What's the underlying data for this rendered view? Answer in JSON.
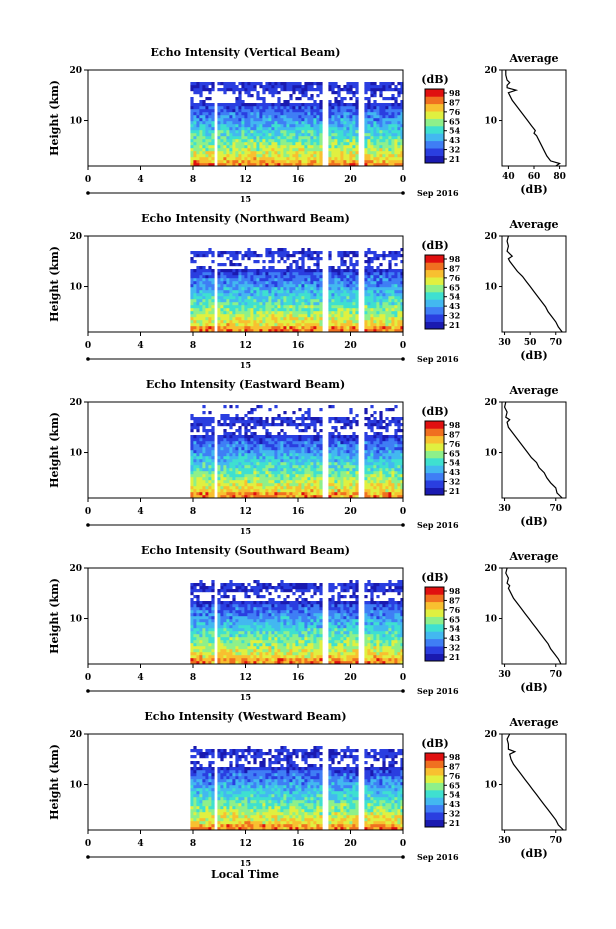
{
  "chart_data": [
    {
      "type": "heatmap",
      "title": "Echo Intensity (Vertical Beam)",
      "ylabel": "Height (km)",
      "xlim": [
        0,
        24
      ],
      "ylim": [
        1,
        20
      ],
      "x_ticks": [
        "0",
        "4",
        "8",
        "12",
        "16",
        "20",
        "0"
      ],
      "y_ticks": [
        "10",
        "20"
      ],
      "date_day": "15",
      "date_label": "Sep 2016",
      "colorbar": {
        "unit": "(dB)",
        "ticks": [
          "98",
          "87",
          "76",
          "65",
          "54",
          "43",
          "32",
          "21"
        ]
      },
      "data_start_hour": 7.8,
      "gaps": [
        9.6,
        18,
        20.7
      ],
      "top_height": 17.5,
      "upper_band": [
        16,
        17.5
      ],
      "avg": {
        "title": "Average",
        "xlabel": "(dB)",
        "xlim": [
          35,
          85
        ],
        "x_ticks": [
          "40",
          "60",
          "80"
        ],
        "y_ticks": [
          "10",
          "20"
        ],
        "profile": [
          [
            77,
            1
          ],
          [
            80,
            1.5
          ],
          [
            73,
            2
          ],
          [
            70,
            3
          ],
          [
            68,
            4
          ],
          [
            66,
            5
          ],
          [
            64,
            6
          ],
          [
            62,
            7
          ],
          [
            60,
            7.5
          ],
          [
            61,
            8
          ],
          [
            58,
            9
          ],
          [
            55,
            10
          ],
          [
            52,
            11
          ],
          [
            49,
            12
          ],
          [
            46,
            13
          ],
          [
            43,
            14
          ],
          [
            41,
            15
          ],
          [
            40,
            15.5
          ],
          [
            46,
            16
          ],
          [
            39,
            16.5
          ],
          [
            39,
            17
          ],
          [
            41,
            17.5
          ],
          [
            39,
            18
          ],
          [
            38,
            19
          ],
          [
            38,
            20
          ]
        ]
      }
    },
    {
      "type": "heatmap",
      "title": "Echo Intensity (Northward Beam)",
      "ylabel": "Height (km)",
      "xlim": [
        0,
        24
      ],
      "ylim": [
        1,
        20
      ],
      "x_ticks": [
        "0",
        "4",
        "8",
        "12",
        "16",
        "20",
        "0"
      ],
      "y_ticks": [
        "10",
        "20"
      ],
      "date_day": "15",
      "date_label": "Sep 2016",
      "colorbar": {
        "unit": "(dB)",
        "ticks": [
          "98",
          "87",
          "76",
          "65",
          "54",
          "43",
          "32",
          "21"
        ]
      },
      "data_start_hour": 7.8,
      "gaps": [
        9.6,
        18,
        20.7
      ],
      "top_height": 17.5,
      "upper_band": [
        16,
        17
      ],
      "avg": {
        "title": "Average",
        "xlabel": "(dB)",
        "xlim": [
          28,
          78
        ],
        "x_ticks": [
          "30",
          "50",
          "70"
        ],
        "y_ticks": [
          "10",
          "20"
        ],
        "profile": [
          [
            75,
            1
          ],
          [
            72,
            2
          ],
          [
            70,
            3
          ],
          [
            67,
            4
          ],
          [
            64,
            5
          ],
          [
            62,
            6
          ],
          [
            59,
            7
          ],
          [
            56,
            8
          ],
          [
            53,
            9
          ],
          [
            50,
            10
          ],
          [
            47,
            11
          ],
          [
            44,
            12
          ],
          [
            40,
            13
          ],
          [
            37,
            14
          ],
          [
            34,
            15
          ],
          [
            33,
            15.5
          ],
          [
            36,
            16
          ],
          [
            32,
            17
          ],
          [
            33,
            18
          ],
          [
            32,
            19
          ],
          [
            33,
            20
          ]
        ]
      }
    },
    {
      "type": "heatmap",
      "title": "Echo Intensity (Eastward Beam)",
      "ylabel": "Height (km)",
      "xlim": [
        0,
        24
      ],
      "ylim": [
        1,
        20
      ],
      "x_ticks": [
        "0",
        "4",
        "8",
        "12",
        "16",
        "20",
        "0"
      ],
      "y_ticks": [
        "10",
        "20"
      ],
      "date_day": "15",
      "date_label": "Sep 2016",
      "colorbar": {
        "unit": "(dB)",
        "ticks": [
          "98",
          "87",
          "76",
          "65",
          "54",
          "43",
          "32",
          "21"
        ]
      },
      "data_start_hour": 7.8,
      "gaps": [
        9.6,
        18,
        20.7
      ],
      "top_height": 19.5,
      "upper_band": [
        15.5,
        17
      ],
      "avg": {
        "title": "Average",
        "xlabel": "(dB)",
        "xlim": [
          28,
          78
        ],
        "x_ticks": [
          "30",
          "70"
        ],
        "y_ticks": [
          "10",
          "20"
        ],
        "profile": [
          [
            75,
            1
          ],
          [
            71,
            2
          ],
          [
            70,
            3
          ],
          [
            66,
            4
          ],
          [
            63,
            5
          ],
          [
            61,
            6
          ],
          [
            57,
            7
          ],
          [
            55,
            8
          ],
          [
            51,
            9
          ],
          [
            48,
            10
          ],
          [
            45,
            11
          ],
          [
            42,
            12
          ],
          [
            39,
            13
          ],
          [
            36,
            14
          ],
          [
            33,
            15
          ],
          [
            32,
            16
          ],
          [
            34,
            16.5
          ],
          [
            31,
            17
          ],
          [
            32,
            18
          ],
          [
            30,
            19
          ],
          [
            31,
            20
          ]
        ]
      }
    },
    {
      "type": "heatmap",
      "title": "Echo Intensity (Southward Beam)",
      "ylabel": "Height (km)",
      "xlim": [
        0,
        24
      ],
      "ylim": [
        1,
        20
      ],
      "x_ticks": [
        "0",
        "4",
        "8",
        "12",
        "16",
        "20",
        "0"
      ],
      "y_ticks": [
        "10",
        "20"
      ],
      "date_day": "15",
      "date_label": "Sep 2016",
      "colorbar": {
        "unit": "(dB)",
        "ticks": [
          "98",
          "87",
          "76",
          "65",
          "54",
          "43",
          "32",
          "21"
        ]
      },
      "data_start_hour": 7.8,
      "gaps": [
        9.6,
        18,
        20.7
      ],
      "top_height": 17.5,
      "upper_band": [
        15,
        17
      ],
      "avg": {
        "title": "Average",
        "xlabel": "(dB)",
        "xlim": [
          28,
          78
        ],
        "x_ticks": [
          "30",
          "70"
        ],
        "y_ticks": [
          "10",
          "20"
        ],
        "profile": [
          [
            74,
            1
          ],
          [
            72,
            2
          ],
          [
            69,
            3
          ],
          [
            66,
            4
          ],
          [
            64,
            5
          ],
          [
            61,
            6
          ],
          [
            58,
            7
          ],
          [
            55,
            8
          ],
          [
            52,
            9
          ],
          [
            49,
            10
          ],
          [
            46,
            11
          ],
          [
            43,
            12
          ],
          [
            40,
            13
          ],
          [
            37,
            14
          ],
          [
            35,
            15
          ],
          [
            33,
            16
          ],
          [
            34,
            16.5
          ],
          [
            32,
            17
          ],
          [
            33,
            18
          ],
          [
            31,
            19
          ],
          [
            32,
            20
          ]
        ]
      }
    },
    {
      "type": "heatmap",
      "title": "Echo Intensity (Westward Beam)",
      "ylabel": "Height (km)",
      "xlim": [
        0,
        24
      ],
      "ylim": [
        1,
        20
      ],
      "x_ticks": [
        "0",
        "4",
        "8",
        "12",
        "16",
        "20",
        "0"
      ],
      "y_ticks": [
        "10",
        "20"
      ],
      "date_day": "15",
      "date_label": "Sep 2016",
      "colorbar": {
        "unit": "(dB)",
        "ticks": [
          "98",
          "87",
          "76",
          "65",
          "54",
          "43",
          "32",
          "21"
        ]
      },
      "data_start_hour": 7.8,
      "gaps": [
        9.6,
        18,
        20.7
      ],
      "top_height": 17.5,
      "upper_band": [
        15.5,
        17
      ],
      "avg": {
        "title": "Average",
        "xlabel": "(dB)",
        "xlim": [
          28,
          78
        ],
        "x_ticks": [
          "30",
          "70"
        ],
        "y_ticks": [
          "10",
          "20"
        ],
        "profile": [
          [
            76,
            1
          ],
          [
            72,
            2
          ],
          [
            70,
            3
          ],
          [
            67,
            4
          ],
          [
            64,
            5
          ],
          [
            61,
            6
          ],
          [
            58,
            7
          ],
          [
            55,
            8
          ],
          [
            52,
            9
          ],
          [
            49,
            10
          ],
          [
            46,
            11
          ],
          [
            43,
            12
          ],
          [
            40,
            13
          ],
          [
            37,
            14
          ],
          [
            35,
            15
          ],
          [
            34,
            16
          ],
          [
            38,
            16.5
          ],
          [
            33,
            17
          ],
          [
            33,
            18
          ],
          [
            32,
            19
          ],
          [
            34,
            20
          ]
        ]
      }
    }
  ],
  "footer": {
    "xlabel": "Local Time"
  },
  "colors": {
    "scale": [
      "#1a1ab0",
      "#2a3ee0",
      "#3f7ef5",
      "#43b8f0",
      "#3fe0d0",
      "#8ef08a",
      "#e0f040",
      "#f8c030",
      "#f07020",
      "#e01010"
    ]
  }
}
